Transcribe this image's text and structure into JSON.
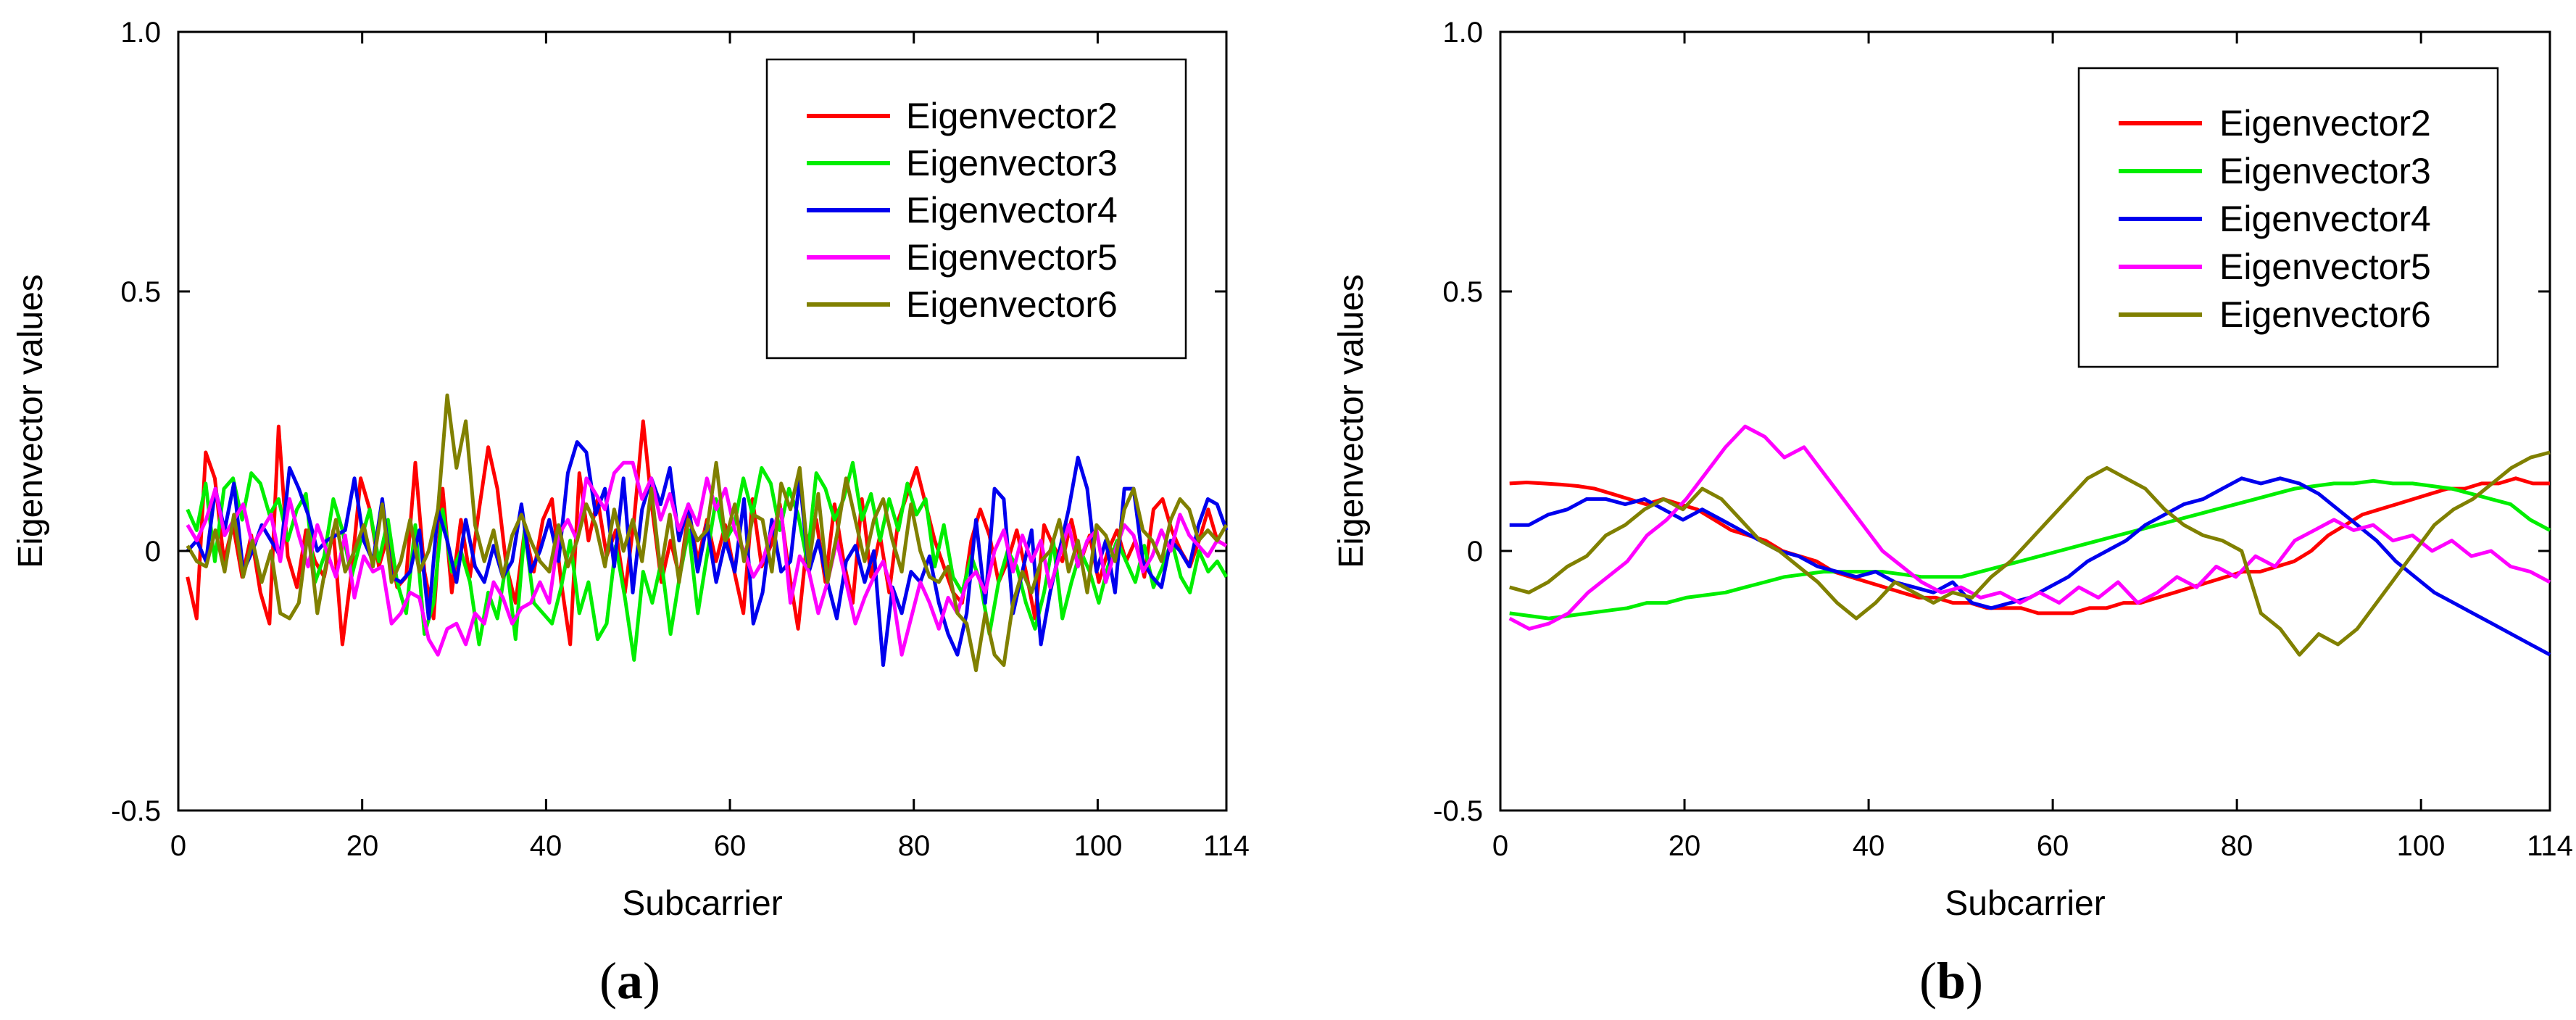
{
  "chart_data": [
    {
      "type": "line",
      "panel_label_open": "(",
      "panel_label_letter": "a",
      "panel_label_close": ")",
      "xlabel": "Subcarrier",
      "ylabel": "Eigenvector values",
      "xlim": [
        0,
        114
      ],
      "ylim": [
        -0.5,
        1.0
      ],
      "xticks": [
        0,
        20,
        40,
        60,
        80,
        100,
        114
      ],
      "yticks": [
        -0.5,
        0,
        0.5,
        1.0
      ],
      "ytick_labels": [
        "-0.5",
        "0",
        "0.5",
        "1.0"
      ],
      "legend_position": "top-right",
      "series": [
        {
          "name": "Eigenvector2",
          "color": "#ff0000",
          "values": [
            -0.05,
            -0.13,
            0.19,
            0.14,
            -0.02,
            0.05,
            -0.05,
            0.03,
            -0.08,
            -0.14,
            0.24,
            -0.01,
            -0.07,
            0.04,
            -0.02,
            -0.05,
            0.04,
            -0.18,
            -0.04,
            0.14,
            0.08,
            -0.03,
            0.03,
            -0.07,
            -0.05,
            0.17,
            -0.04,
            -0.13,
            0.12,
            -0.08,
            0.06,
            -0.05,
            0.08,
            0.2,
            0.12,
            -0.03,
            -0.1,
            0.04,
            -0.04,
            0.06,
            0.1,
            -0.06,
            -0.18,
            0.15,
            0.02,
            0.1,
            -0.01,
            0.04,
            -0.08,
            0.06,
            0.25,
            0.08,
            -0.06,
            0.02,
            -0.05,
            0.08,
            -0.02,
            0.06,
            -0.02,
            0.05,
            -0.04,
            -0.12,
            0.1,
            -0.03,
            0.01,
            0.09,
            -0.04,
            -0.15,
            0.02,
            0.06,
            -0.06,
            0.09,
            -0.02,
            -0.1,
            0.1,
            -0.05,
            0.03,
            -0.08,
            0.06,
            0.11,
            0.16,
            0.09,
            0.02,
            -0.03,
            -0.08,
            -0.1,
            0.02,
            0.08,
            0.03,
            -0.06,
            -0.02,
            0.04,
            -0.04,
            -0.13,
            0.05,
            0.01,
            -0.02,
            0.06,
            -0.02,
            0.03,
            -0.06,
            0.0,
            0.04,
            -0.02,
            0.02,
            -0.05,
            0.08,
            0.1,
            0.04,
            0.0,
            -0.03,
            0.02,
            0.08,
            0.02,
            0.01
          ]
        },
        {
          "name": "Eigenvector3",
          "color": "#00ee00",
          "values": [
            0.08,
            0.04,
            0.13,
            -0.02,
            0.12,
            0.14,
            0.06,
            0.15,
            0.13,
            0.07,
            0.1,
            0.02,
            0.08,
            0.11,
            -0.06,
            -0.01,
            0.1,
            0.04,
            -0.05,
            0.02,
            0.08,
            -0.02,
            0.06,
            -0.06,
            -0.12,
            0.05,
            -0.16,
            -0.1,
            0.08,
            -0.04,
            0.0,
            -0.06,
            -0.18,
            -0.08,
            -0.13,
            -0.02,
            -0.17,
            0.04,
            -0.1,
            -0.12,
            -0.14,
            -0.07,
            0.02,
            -0.12,
            -0.06,
            -0.17,
            -0.14,
            0.01,
            -0.09,
            -0.21,
            -0.04,
            -0.1,
            -0.02,
            -0.16,
            -0.05,
            0.04,
            -0.12,
            -0.01,
            0.1,
            0.02,
            0.05,
            0.14,
            0.07,
            0.16,
            0.13,
            0.04,
            0.12,
            0.07,
            -0.02,
            0.15,
            0.12,
            0.06,
            0.1,
            0.17,
            0.06,
            0.11,
            0.02,
            0.1,
            0.04,
            0.13,
            0.07,
            0.1,
            -0.03,
            0.05,
            -0.05,
            -0.08,
            -0.01,
            -0.06,
            -0.16,
            -0.06,
            0.0,
            -0.03,
            -0.1,
            -0.15,
            -0.08,
            0.02,
            -0.13,
            -0.06,
            0.0,
            -0.04,
            -0.1,
            -0.03,
            0.02,
            -0.02,
            -0.06,
            0.01,
            -0.07,
            -0.03,
            0.02,
            -0.05,
            -0.08,
            0.0,
            -0.04,
            -0.02,
            -0.05
          ]
        },
        {
          "name": "Eigenvector4",
          "color": "#0000ee",
          "values": [
            0.0,
            0.02,
            -0.02,
            0.12,
            0.04,
            0.13,
            -0.04,
            0.0,
            0.05,
            0.02,
            -0.01,
            0.16,
            0.12,
            0.07,
            0.0,
            0.02,
            0.03,
            0.04,
            0.14,
            0.02,
            -0.02,
            0.1,
            -0.05,
            -0.06,
            -0.04,
            0.04,
            -0.13,
            0.08,
            0.02,
            -0.06,
            0.06,
            -0.03,
            -0.06,
            0.01,
            -0.05,
            -0.02,
            0.09,
            -0.04,
            0.0,
            0.06,
            -0.02,
            0.15,
            0.21,
            0.19,
            0.07,
            0.12,
            -0.03,
            0.14,
            -0.08,
            0.08,
            0.14,
            0.09,
            0.16,
            0.02,
            0.09,
            -0.04,
            0.05,
            -0.06,
            0.02,
            -0.04,
            0.1,
            -0.14,
            -0.08,
            0.06,
            -0.04,
            -0.02,
            0.14,
            -0.04,
            0.02,
            -0.06,
            -0.13,
            -0.02,
            0.01,
            -0.06,
            0.0,
            -0.22,
            -0.07,
            -0.12,
            -0.04,
            -0.06,
            -0.01,
            -0.1,
            -0.16,
            -0.2,
            -0.12,
            0.06,
            -0.1,
            0.12,
            0.1,
            -0.12,
            -0.04,
            0.04,
            -0.18,
            -0.08,
            0.0,
            0.08,
            0.18,
            0.12,
            -0.04,
            0.02,
            -0.08,
            0.12,
            0.12,
            -0.02,
            -0.05,
            -0.07,
            0.02,
            0.0,
            -0.03,
            0.05,
            0.1,
            0.09,
            0.04
          ]
        },
        {
          "name": "Eigenvector5",
          "color": "#ff00ff",
          "values": [
            0.05,
            0.02,
            0.06,
            0.12,
            0.03,
            0.06,
            0.09,
            0.01,
            0.04,
            0.07,
            -0.02,
            0.1,
            0.03,
            -0.03,
            0.05,
            0.0,
            -0.05,
            0.03,
            -0.09,
            -0.01,
            -0.04,
            -0.03,
            -0.14,
            -0.12,
            -0.08,
            -0.09,
            -0.17,
            -0.2,
            -0.15,
            -0.14,
            -0.18,
            -0.12,
            -0.14,
            -0.06,
            -0.09,
            -0.14,
            -0.11,
            -0.1,
            -0.06,
            -0.1,
            0.03,
            0.06,
            0.02,
            0.14,
            0.11,
            0.08,
            0.15,
            0.17,
            0.17,
            0.1,
            0.14,
            0.06,
            0.11,
            0.04,
            0.09,
            0.05,
            0.14,
            0.08,
            0.12,
            0.04,
            0.0,
            -0.05,
            -0.02,
            0.04,
            0.08,
            -0.1,
            -0.01,
            -0.04,
            -0.12,
            -0.06,
            0.02,
            -0.06,
            -0.14,
            -0.09,
            -0.05,
            -0.02,
            -0.08,
            -0.2,
            -0.13,
            -0.06,
            -0.1,
            -0.15,
            -0.09,
            -0.12,
            -0.06,
            -0.04,
            -0.08,
            0.0,
            0.04,
            -0.04,
            0.03,
            -0.02,
            0.02,
            -0.07,
            -0.01,
            0.05,
            -0.03,
            0.02,
            0.04,
            -0.06,
            0.0,
            0.05,
            0.03,
            -0.04,
            -0.01,
            0.04,
            0.0,
            0.07,
            0.03,
            0.01,
            -0.01,
            0.02,
            0.01
          ]
        },
        {
          "name": "Eigenvector6",
          "color": "#808000",
          "values": [
            0.01,
            -0.02,
            -0.03,
            0.04,
            -0.04,
            0.07,
            -0.05,
            0.02,
            -0.06,
            0.0,
            -0.12,
            -0.13,
            -0.1,
            0.04,
            -0.12,
            -0.02,
            0.06,
            -0.04,
            0.0,
            0.05,
            -0.03,
            0.09,
            -0.06,
            -0.02,
            0.06,
            -0.04,
            0.0,
            0.08,
            0.3,
            0.16,
            0.25,
            0.05,
            -0.02,
            0.04,
            -0.05,
            0.03,
            0.07,
            0.02,
            -0.02,
            -0.04,
            0.05,
            -0.03,
            0.02,
            0.09,
            0.05,
            -0.03,
            0.08,
            0.0,
            0.06,
            -0.02,
            0.12,
            -0.04,
            0.07,
            -0.06,
            0.06,
            0.02,
            0.04,
            0.17,
            0.02,
            0.09,
            -0.02,
            0.07,
            0.06,
            -0.04,
            0.13,
            0.08,
            0.16,
            -0.03,
            0.11,
            -0.06,
            0.03,
            0.14,
            0.06,
            -0.02,
            0.06,
            0.1,
            0.02,
            -0.04,
            0.09,
            0.0,
            -0.05,
            -0.06,
            -0.03,
            -0.12,
            -0.14,
            -0.23,
            -0.12,
            -0.2,
            -0.22,
            -0.1,
            -0.04,
            -0.08,
            -0.02,
            0.0,
            0.06,
            -0.04,
            0.02,
            -0.08,
            0.05,
            0.03,
            -0.02,
            0.08,
            0.12,
            0.04,
            0.02,
            -0.02,
            0.06,
            0.1,
            0.08,
            0.02,
            0.04,
            0.02,
            0.05
          ]
        }
      ]
    },
    {
      "type": "line",
      "panel_label_open": "(",
      "panel_label_letter": "b",
      "panel_label_close": ")",
      "xlabel": "Subcarrier",
      "ylabel": "Eigenvector values",
      "xlim": [
        0,
        114
      ],
      "ylim": [
        -0.5,
        1.0
      ],
      "xticks": [
        0,
        20,
        40,
        60,
        80,
        100,
        114
      ],
      "yticks": [
        -0.5,
        0,
        0.5,
        1.0
      ],
      "ytick_labels": [
        "-0.5",
        "0",
        "0.5",
        "1.0"
      ],
      "legend_position": "top-right",
      "series": [
        {
          "name": "Eigenvector2",
          "color": "#ff0000",
          "values": [
            0.13,
            0.132,
            0.13,
            0.128,
            0.125,
            0.12,
            0.11,
            0.1,
            0.09,
            0.1,
            0.09,
            0.08,
            0.06,
            0.04,
            0.03,
            0.02,
            0.0,
            -0.01,
            -0.02,
            -0.04,
            -0.05,
            -0.06,
            -0.07,
            -0.08,
            -0.09,
            -0.09,
            -0.1,
            -0.1,
            -0.11,
            -0.11,
            -0.11,
            -0.12,
            -0.12,
            -0.12,
            -0.11,
            -0.11,
            -0.1,
            -0.1,
            -0.09,
            -0.08,
            -0.07,
            -0.06,
            -0.05,
            -0.04,
            -0.04,
            -0.03,
            -0.02,
            0.0,
            0.03,
            0.05,
            0.07,
            0.08,
            0.09,
            0.1,
            0.11,
            0.12,
            0.12,
            0.13,
            0.13,
            0.14,
            0.13,
            0.13
          ]
        },
        {
          "name": "Eigenvector3",
          "color": "#00ee00",
          "values": [
            -0.12,
            -0.125,
            -0.13,
            -0.125,
            -0.12,
            -0.115,
            -0.11,
            -0.1,
            -0.1,
            -0.09,
            -0.085,
            -0.08,
            -0.07,
            -0.06,
            -0.05,
            -0.045,
            -0.04,
            -0.04,
            -0.04,
            -0.04,
            -0.045,
            -0.05,
            -0.05,
            -0.05,
            -0.04,
            -0.03,
            -0.02,
            -0.01,
            0.0,
            0.01,
            0.02,
            0.03,
            0.04,
            0.05,
            0.06,
            0.07,
            0.08,
            0.09,
            0.1,
            0.11,
            0.12,
            0.125,
            0.13,
            0.13,
            0.135,
            0.13,
            0.13,
            0.125,
            0.12,
            0.11,
            0.1,
            0.09,
            0.06,
            0.04
          ]
        },
        {
          "name": "Eigenvector4",
          "color": "#0000ee",
          "values": [
            0.05,
            0.05,
            0.07,
            0.08,
            0.1,
            0.1,
            0.09,
            0.1,
            0.08,
            0.06,
            0.08,
            0.06,
            0.04,
            0.02,
            0.0,
            -0.01,
            -0.03,
            -0.04,
            -0.05,
            -0.04,
            -0.06,
            -0.07,
            -0.08,
            -0.06,
            -0.1,
            -0.11,
            -0.1,
            -0.09,
            -0.07,
            -0.05,
            -0.02,
            0.0,
            0.02,
            0.05,
            0.07,
            0.09,
            0.1,
            0.12,
            0.14,
            0.13,
            0.14,
            0.13,
            0.11,
            0.08,
            0.05,
            0.02,
            -0.02,
            -0.05,
            -0.08,
            -0.1,
            -0.12,
            -0.14,
            -0.16,
            -0.18,
            -0.2
          ]
        },
        {
          "name": "Eigenvector5",
          "color": "#ff00ff",
          "values": [
            -0.13,
            -0.15,
            -0.14,
            -0.12,
            -0.08,
            -0.05,
            -0.02,
            0.03,
            0.06,
            0.1,
            0.15,
            0.2,
            0.24,
            0.22,
            0.18,
            0.2,
            0.15,
            0.1,
            0.05,
            0.0,
            -0.03,
            -0.06,
            -0.08,
            -0.07,
            -0.09,
            -0.08,
            -0.1,
            -0.08,
            -0.1,
            -0.07,
            -0.09,
            -0.06,
            -0.1,
            -0.08,
            -0.05,
            -0.07,
            -0.03,
            -0.05,
            -0.01,
            -0.03,
            0.02,
            0.04,
            0.06,
            0.04,
            0.05,
            0.02,
            0.03,
            0.0,
            0.02,
            -0.01,
            0.0,
            -0.03,
            -0.04,
            -0.06
          ]
        },
        {
          "name": "Eigenvector6",
          "color": "#808000",
          "values": [
            -0.07,
            -0.08,
            -0.06,
            -0.03,
            -0.01,
            0.03,
            0.05,
            0.08,
            0.1,
            0.08,
            0.12,
            0.1,
            0.06,
            0.02,
            0.0,
            -0.03,
            -0.06,
            -0.1,
            -0.13,
            -0.1,
            -0.06,
            -0.08,
            -0.1,
            -0.08,
            -0.09,
            -0.05,
            -0.02,
            0.02,
            0.06,
            0.1,
            0.14,
            0.16,
            0.14,
            0.12,
            0.08,
            0.05,
            0.03,
            0.02,
            0.0,
            -0.12,
            -0.15,
            -0.2,
            -0.16,
            -0.18,
            -0.15,
            -0.1,
            -0.05,
            0.0,
            0.05,
            0.08,
            0.1,
            0.13,
            0.16,
            0.18,
            0.19
          ]
        }
      ]
    }
  ]
}
